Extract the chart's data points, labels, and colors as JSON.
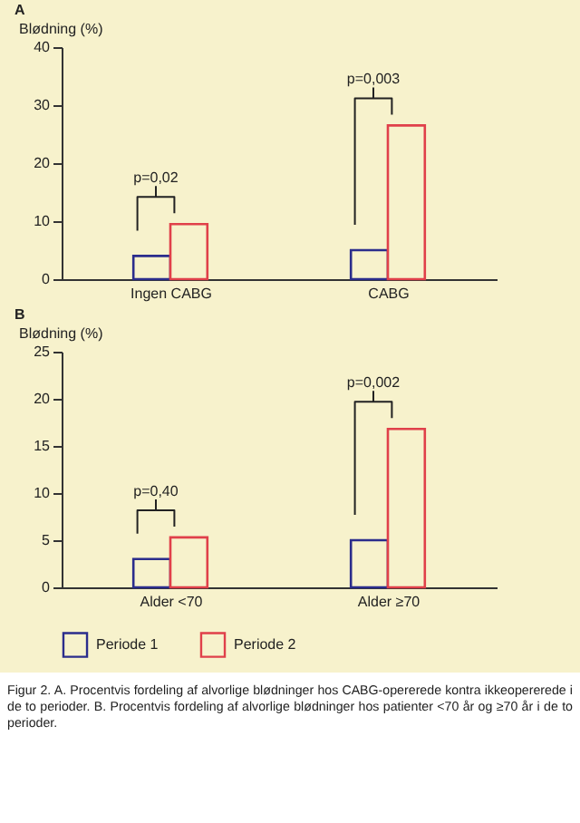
{
  "chart_data": [
    {
      "type": "bar",
      "title": "A",
      "ylabel": "Blødning (%)",
      "categories": [
        "Ingen CABG",
        "CABG"
      ],
      "ylim": [
        0,
        40
      ],
      "yticks": [
        0,
        10,
        20,
        30,
        40
      ],
      "grid": false,
      "legend": false,
      "series": [
        {
          "color": "#2b2d8c",
          "values": [
            4,
            5
          ]
        },
        {
          "color": "#e0404a",
          "values": [
            9.5,
            26.5
          ]
        }
      ],
      "annotations": [
        "p=0,02",
        "p=0,003"
      ]
    },
    {
      "type": "bar",
      "title": "B",
      "ylabel": "Blødning (%)",
      "categories": [
        "Alder <70",
        "Alder ≥70"
      ],
      "ylim": [
        0,
        25
      ],
      "yticks": [
        0,
        5,
        10,
        15,
        20,
        25
      ],
      "grid": false,
      "legend": "bottom",
      "series": [
        {
          "name": "Periode 1",
          "color": "#2b2d8c",
          "values": [
            3,
            5
          ]
        },
        {
          "name": "Periode 2",
          "color": "#e0404a",
          "values": [
            5.3,
            16.8
          ]
        }
      ],
      "annotations": [
        "p=0,40",
        "p=0,002",
        "Figur 2. A. Procentvis fordeling af alvorlige blødninger hos CABG-opererede kontra ikkeopererede i de to perioder. B. Procentvis fordeling af alvorlige blødninger hos patienter <70 år og ≥70 år i de to perioder."
      ]
    }
  ]
}
